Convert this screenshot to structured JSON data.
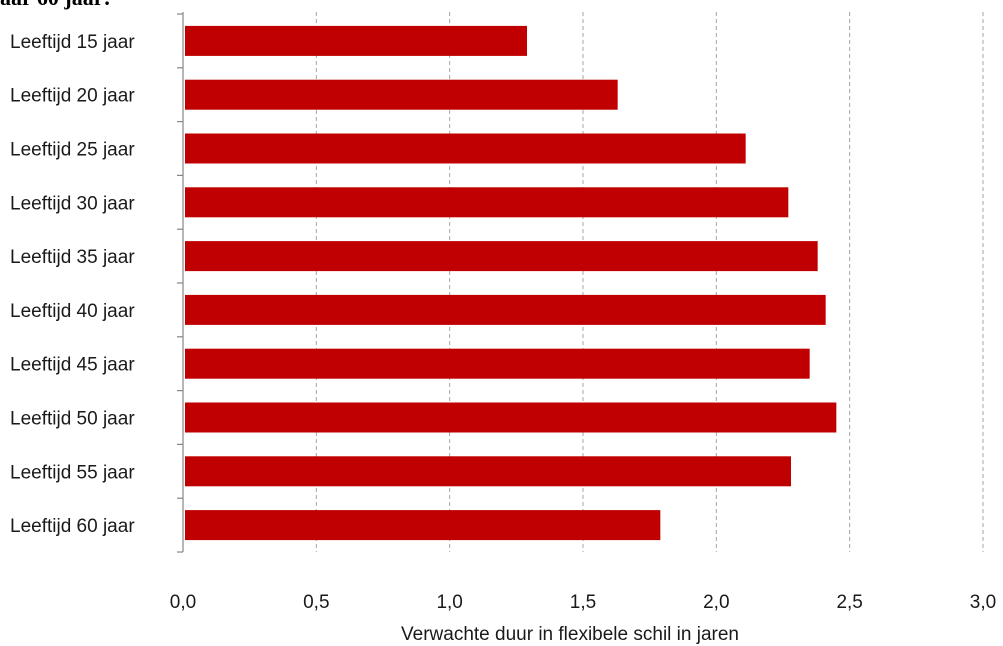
{
  "page": {
    "fragment_title": "aar 60 jaar:"
  },
  "chart_data": {
    "type": "bar",
    "orientation": "horizontal",
    "categories": [
      "Leeftijd 15 jaar",
      "Leeftijd 20 jaar",
      "Leeftijd 25 jaar",
      "Leeftijd 30 jaar",
      "Leeftijd 35 jaar",
      "Leeftijd 40 jaar",
      "Leeftijd 45 jaar",
      "Leeftijd 50 jaar",
      "Leeftijd 55 jaar",
      "Leeftijd 60 jaar"
    ],
    "values": [
      1.29,
      1.63,
      2.11,
      2.27,
      2.38,
      2.41,
      2.35,
      2.45,
      2.28,
      1.79
    ],
    "xlabel": "Verwachte duur in flexibele schil in jaren",
    "ylabel": "",
    "xlim": [
      0,
      3.0
    ],
    "x_ticks": [
      "0,0",
      "0,5",
      "1,0",
      "1,5",
      "2,0",
      "2,5",
      "3,0"
    ],
    "grid": "vertical dashed",
    "bar_color": "#c00000",
    "grid_color": "#a6a6a6",
    "axis_color": "#868686"
  }
}
